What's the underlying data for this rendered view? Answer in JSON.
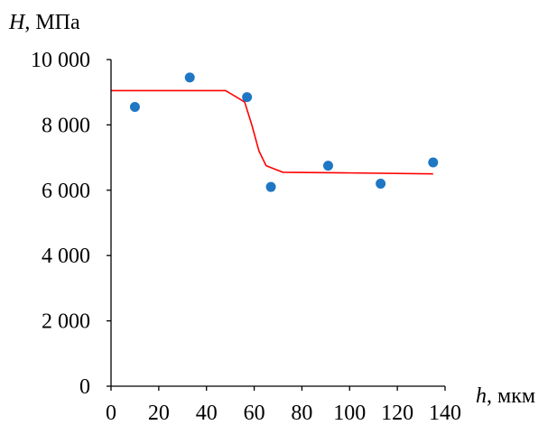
{
  "chart_data": {
    "type": "scatter",
    "title": "",
    "xlabel_var": "h",
    "xlabel_unit": ", мкм",
    "ylabel_var": "H",
    "ylabel_unit": ", МПа",
    "xlim": [
      0,
      140
    ],
    "ylim": [
      0,
      10000
    ],
    "x_ticks": [
      0,
      20,
      40,
      60,
      80,
      100,
      120,
      140
    ],
    "y_ticks": [
      0,
      2000,
      4000,
      6000,
      8000,
      10000
    ],
    "x_tick_labels": [
      "0",
      "20",
      "40",
      "60",
      "80",
      "100",
      "120",
      "140"
    ],
    "y_tick_labels": [
      "0",
      "2 000",
      "4 000",
      "6 000",
      "8 000",
      "10 000"
    ],
    "grid": false,
    "legend": "none",
    "series": [
      {
        "type": "scatter",
        "color": "#1f77c4",
        "points": [
          [
            10,
            8550
          ],
          [
            33,
            9450
          ],
          [
            57,
            8850
          ],
          [
            67,
            6100
          ],
          [
            91,
            6750
          ],
          [
            113,
            6200
          ],
          [
            135,
            6850
          ]
        ]
      },
      {
        "type": "line",
        "color": "#ff0000",
        "points": [
          [
            0,
            9050
          ],
          [
            48,
            9050
          ],
          [
            56,
            8700
          ],
          [
            59,
            8000
          ],
          [
            62,
            7200
          ],
          [
            65,
            6750
          ],
          [
            72,
            6550
          ],
          [
            100,
            6530
          ],
          [
            135,
            6500
          ]
        ]
      }
    ]
  }
}
